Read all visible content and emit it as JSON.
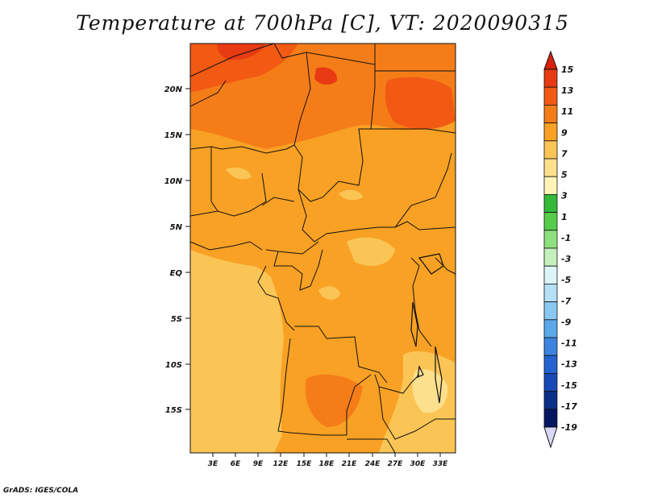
{
  "title": "Temperature at 700hPa [C], VT: 2020090315",
  "credit": "GrADS: IGES/COLA",
  "map": {
    "lon_labels": [
      "3E",
      "6E",
      "9E",
      "12E",
      "15E",
      "18E",
      "21E",
      "24E",
      "27E",
      "30E",
      "33E"
    ],
    "lat_labels": [
      "20N",
      "15N",
      "10N",
      "5N",
      "EQ",
      "5S",
      "10S",
      "15S"
    ]
  },
  "colorbar": {
    "labels": [
      "15",
      "13",
      "11",
      "9",
      "7",
      "5",
      "3",
      "1",
      "-1",
      "-3",
      "-5",
      "-7",
      "-9",
      "-11",
      "-13",
      "-15",
      "-17",
      "-19"
    ],
    "colors": [
      "#e83a13",
      "#f25a14",
      "#f57d18",
      "#f8a124",
      "#fbc556",
      "#fde08e",
      "#fff3b8",
      "#34b93a",
      "#56cc4a",
      "#8ee07e",
      "#c3f0bb",
      "#ddf5f6",
      "#b5e0f6",
      "#88c8f1",
      "#5aa8ea",
      "#3b84e0",
      "#2563d3",
      "#174ab6",
      "#0c2f88",
      "#061660"
    ],
    "top_arrow_color": "#d9200f",
    "bottom_arrow_color": "#d8d8f4"
  }
}
